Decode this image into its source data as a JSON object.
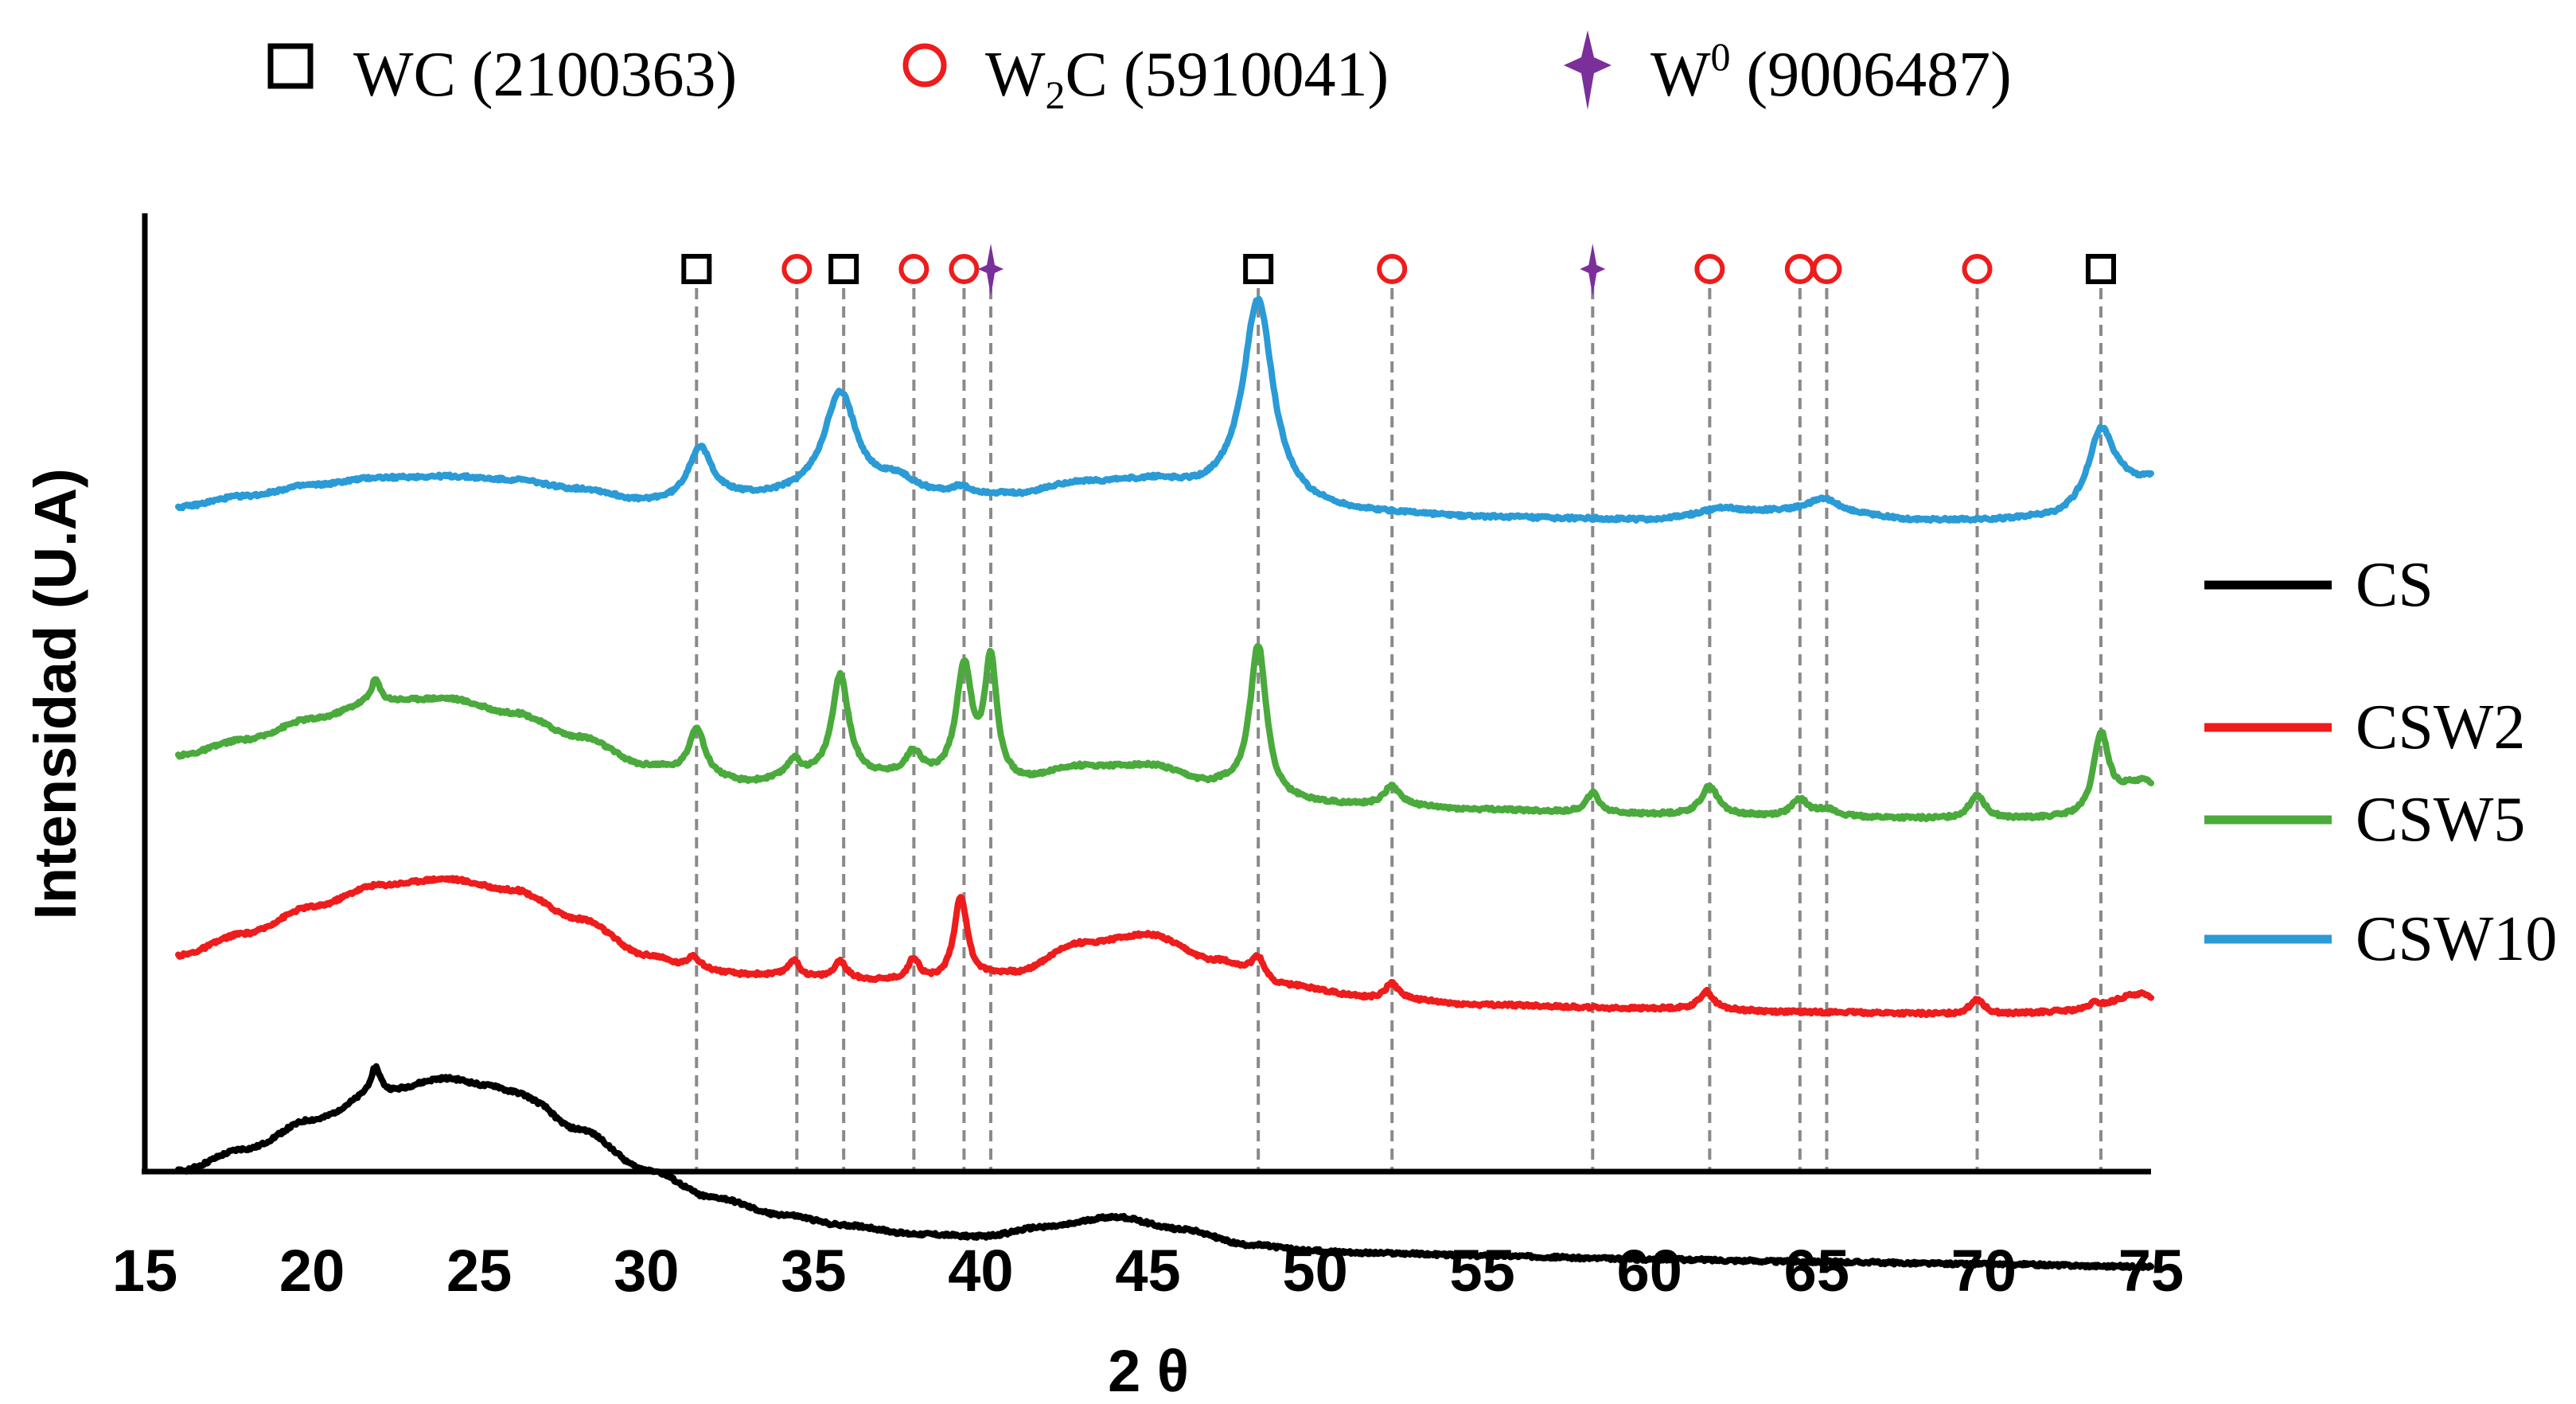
{
  "chart_data": {
    "type": "line",
    "xlabel": "2 θ",
    "ylabel": "Intensidad (U.A)",
    "xlim": [
      15,
      75
    ],
    "x_ticks": [
      15,
      20,
      25,
      30,
      35,
      40,
      45,
      50,
      55,
      60,
      65,
      70,
      75
    ],
    "grid": false,
    "colors": {
      "CS": "#000000",
      "CSW2": "#ee1c1c",
      "CSW5": "#4aaa3c",
      "CSW10": "#2a9bd6",
      "WC": "#000000",
      "W2C": "#ee1c1c",
      "W0": "#7a2f9a",
      "ref_line": "#8a8a8a"
    },
    "phase_legend": [
      {
        "id": "WC",
        "marker": "square",
        "label": "WC (2100363)"
      },
      {
        "id": "W2C",
        "marker": "circle",
        "label_main": "W",
        "label_sub": "2",
        "label_rest": "C (5910041)"
      },
      {
        "id": "W0",
        "marker": "star",
        "label_main": "W",
        "label_sup": "0",
        "label_rest": " (9006487)"
      }
    ],
    "reference_peaks": [
      {
        "two_theta": 31.5,
        "phase": "WC"
      },
      {
        "two_theta": 34.5,
        "phase": "W2C"
      },
      {
        "two_theta": 35.9,
        "phase": "WC"
      },
      {
        "two_theta": 38.0,
        "phase": "W2C"
      },
      {
        "two_theta": 39.5,
        "phase": "W2C"
      },
      {
        "two_theta": 40.3,
        "phase": "W0"
      },
      {
        "two_theta": 48.3,
        "phase": "WC"
      },
      {
        "two_theta": 52.3,
        "phase": "W2C"
      },
      {
        "two_theta": 58.3,
        "phase": "W0"
      },
      {
        "two_theta": 61.8,
        "phase": "W2C"
      },
      {
        "two_theta": 64.5,
        "phase": "W2C"
      },
      {
        "two_theta": 65.3,
        "phase": "W2C"
      },
      {
        "two_theta": 69.8,
        "phase": "W2C"
      },
      {
        "two_theta": 73.5,
        "phase": "WC"
      }
    ],
    "legend": [
      "CS",
      "CSW2",
      "CSW5",
      "CSW10"
    ],
    "legend_position": "right",
    "series": [
      {
        "name": "CS",
        "note": "y in arbitrary intensity units (offset stacked)",
        "baseline": [
          [
            16,
            13.2
          ],
          [
            18,
            15.0
          ],
          [
            20,
            17.4
          ],
          [
            22,
            19.6
          ],
          [
            24,
            20.8
          ],
          [
            26,
            19.6
          ],
          [
            28,
            16.6
          ],
          [
            30,
            13.3
          ],
          [
            32,
            11.0
          ],
          [
            34,
            9.6
          ],
          [
            36,
            8.7
          ],
          [
            38,
            8.0
          ],
          [
            40,
            7.8
          ],
          [
            42,
            8.6
          ],
          [
            44,
            9.4
          ],
          [
            46,
            8.4
          ],
          [
            48,
            7.1
          ],
          [
            50,
            6.6
          ],
          [
            52,
            6.4
          ],
          [
            55,
            6.2
          ],
          [
            60,
            5.9
          ],
          [
            65,
            5.7
          ],
          [
            70,
            5.5
          ],
          [
            75,
            5.3
          ]
        ],
        "peaks": [
          [
            21.9,
            2.2,
            0.18
          ],
          [
            25.5,
            0.4,
            0.3
          ],
          [
            27.0,
            0.3,
            0.3
          ]
        ]
      },
      {
        "name": "CSW2",
        "baseline": [
          [
            16,
            31.0
          ],
          [
            18,
            32.8
          ],
          [
            20,
            35.0
          ],
          [
            22,
            36.8
          ],
          [
            24,
            37.3
          ],
          [
            26,
            36.4
          ],
          [
            28,
            34.0
          ],
          [
            30,
            31.0
          ],
          [
            31.5,
            29.8
          ],
          [
            33,
            29.4
          ],
          [
            35,
            29.1
          ],
          [
            37,
            28.9
          ],
          [
            39,
            28.8
          ],
          [
            41,
            29.5
          ],
          [
            43,
            32.0
          ],
          [
            45,
            32.7
          ],
          [
            47,
            30.6
          ],
          [
            49,
            28.5
          ],
          [
            52,
            27.4
          ],
          [
            55,
            26.9
          ],
          [
            60,
            26.6
          ],
          [
            65,
            26.3
          ],
          [
            70,
            26.1
          ],
          [
            73,
            26.4
          ],
          [
            74.7,
            27.8
          ],
          [
            75,
            27.5
          ]
        ],
        "peaks": [
          [
            31.4,
            1.2,
            0.22
          ],
          [
            34.4,
            1.4,
            0.22
          ],
          [
            35.8,
            1.4,
            0.22
          ],
          [
            38.0,
            1.8,
            0.2
          ],
          [
            39.4,
            7.0,
            0.24
          ],
          [
            48.3,
            1.8,
            0.25
          ],
          [
            52.3,
            1.3,
            0.25
          ],
          [
            61.7,
            1.5,
            0.25
          ],
          [
            69.8,
            1.3,
            0.25
          ],
          [
            73.3,
            0.6,
            0.25
          ]
        ]
      },
      {
        "name": "CSW5",
        "baseline": [
          [
            16,
            47.5
          ],
          [
            18,
            48.8
          ],
          [
            20,
            50.5
          ],
          [
            22,
            52.0
          ],
          [
            24,
            52.2
          ],
          [
            26,
            51.0
          ],
          [
            28,
            49.0
          ],
          [
            30,
            46.6
          ],
          [
            31.5,
            45.8
          ],
          [
            33,
            45.2
          ],
          [
            35,
            45.6
          ],
          [
            37,
            45.6
          ],
          [
            39,
            45.4
          ],
          [
            41,
            45.2
          ],
          [
            43,
            46.5
          ],
          [
            45,
            46.6
          ],
          [
            47,
            45.0
          ],
          [
            49,
            43.6
          ],
          [
            52,
            43.3
          ],
          [
            55,
            43.0
          ],
          [
            58,
            42.8
          ],
          [
            60,
            42.6
          ],
          [
            65,
            42.4
          ],
          [
            70,
            42.2
          ],
          [
            73,
            42.3
          ],
          [
            74.8,
            45.2
          ],
          [
            75,
            45.0
          ]
        ],
        "peaks": [
          [
            21.9,
            1.8,
            0.15
          ],
          [
            31.5,
            4.0,
            0.28
          ],
          [
            34.4,
            1.4,
            0.25
          ],
          [
            35.8,
            8.4,
            0.3
          ],
          [
            38.0,
            2.0,
            0.3
          ],
          [
            39.5,
            9.2,
            0.28
          ],
          [
            40.3,
            9.8,
            0.22
          ],
          [
            48.3,
            12.6,
            0.3
          ],
          [
            52.3,
            1.6,
            0.3
          ],
          [
            58.3,
            1.6,
            0.22
          ],
          [
            61.8,
            2.4,
            0.3
          ],
          [
            64.5,
            1.4,
            0.3
          ],
          [
            65.3,
            0.6,
            0.3
          ],
          [
            69.8,
            2.0,
            0.28
          ],
          [
            73.5,
            6.6,
            0.28
          ]
        ]
      },
      {
        "name": "CSW10",
        "baseline": [
          [
            16,
            68.0
          ],
          [
            18,
            68.9
          ],
          [
            20,
            69.8
          ],
          [
            22,
            70.4
          ],
          [
            24,
            70.5
          ],
          [
            26,
            70.2
          ],
          [
            28,
            69.4
          ],
          [
            30,
            68.3
          ],
          [
            31,
            68.1
          ],
          [
            33,
            68.6
          ],
          [
            35,
            68.8
          ],
          [
            37,
            68.8
          ],
          [
            39,
            68.8
          ],
          [
            41,
            68.9
          ],
          [
            43,
            69.9
          ],
          [
            45,
            70.0
          ],
          [
            47,
            69.0
          ],
          [
            49,
            67.8
          ],
          [
            52,
            67.4
          ],
          [
            55,
            67.1
          ],
          [
            58,
            67.0
          ],
          [
            60,
            66.9
          ],
          [
            62,
            67.3
          ],
          [
            64,
            67.6
          ],
          [
            65,
            67.7
          ],
          [
            66,
            67.3
          ],
          [
            68,
            66.9
          ],
          [
            70,
            66.9
          ],
          [
            72,
            67.1
          ],
          [
            74.5,
            69.9
          ],
          [
            75,
            70.2
          ]
        ],
        "peaks": [
          [
            31.6,
            4.6,
            0.45
          ],
          [
            35.8,
            8.5,
            0.6
          ],
          [
            37.5,
            1.2,
            0.6
          ],
          [
            39.4,
            0.6,
            0.3
          ],
          [
            48.3,
            17.0,
            0.55
          ],
          [
            62.2,
            0.6,
            0.6
          ],
          [
            65.3,
            1.0,
            0.6
          ],
          [
            73.5,
            5.6,
            0.45
          ]
        ]
      }
    ]
  }
}
